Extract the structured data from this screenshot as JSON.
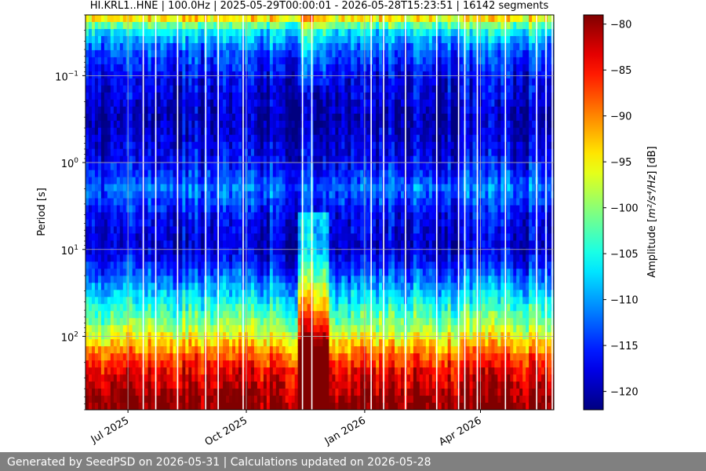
{
  "chart_data": {
    "type": "heatmap",
    "title": "HI.KRL1..HNE | 100.0Hz | 2025-05-29T00:00:01 - 2026-05-28T15:23:51 | 16142 segments",
    "xlabel": "",
    "ylabel": "Period [s]",
    "x_range": [
      "2025-05-29",
      "2026-05-28"
    ],
    "x_ticks": [
      {
        "date": "2025-07-01",
        "label": "Jul 2025"
      },
      {
        "date": "2025-10-01",
        "label": "Oct 2025"
      },
      {
        "date": "2026-01-01",
        "label": "Jan 2026"
      },
      {
        "date": "2026-04-01",
        "label": "Apr 2026"
      }
    ],
    "y_scale": "log",
    "y_inverted": true,
    "y_range": [
      0.02,
      700
    ],
    "y_ticks": [
      {
        "value": 0.1,
        "base": "10",
        "exp": "−1"
      },
      {
        "value": 1,
        "base": "10",
        "exp": "0"
      },
      {
        "value": 10,
        "base": "10",
        "exp": "1"
      },
      {
        "value": 100,
        "base": "10",
        "exp": "2"
      }
    ],
    "grid": true,
    "colormap": "jet",
    "colorbar": {
      "label_prefix": "Amplitude [",
      "label_math": "m²/s⁴/Hz",
      "label_suffix": "] [dB]",
      "range": [
        -122,
        -79
      ],
      "ticks": [
        "−80",
        "−85",
        "−90",
        "−95",
        "−100",
        "−105",
        "−110",
        "−115",
        "−120"
      ],
      "tick_values": [
        -80,
        -85,
        -90,
        -95,
        -100,
        -105,
        -110,
        -115,
        -120
      ]
    },
    "profile_note_free": true,
    "period_profile": [
      {
        "period": 0.02,
        "db": -91
      },
      {
        "period": 0.025,
        "db": -100
      },
      {
        "period": 0.03,
        "db": -106
      },
      {
        "period": 0.05,
        "db": -113
      },
      {
        "period": 0.1,
        "db": -117
      },
      {
        "period": 0.3,
        "db": -120
      },
      {
        "period": 1,
        "db": -117
      },
      {
        "period": 2,
        "db": -112
      },
      {
        "period": 4,
        "db": -117
      },
      {
        "period": 10,
        "db": -119
      },
      {
        "period": 20,
        "db": -113
      },
      {
        "period": 40,
        "db": -106
      },
      {
        "period": 80,
        "db": -99
      },
      {
        "period": 150,
        "db": -90
      },
      {
        "period": 250,
        "db": -84
      },
      {
        "period": 500,
        "db": -80
      },
      {
        "period": 700,
        "db": -79
      }
    ],
    "high_noise_window": [
      "2025-11-10",
      "2025-12-05"
    ]
  },
  "footer": {
    "text": "Generated by SeedPSD on 2026-05-31 | Calculations updated on 2026-05-28"
  }
}
